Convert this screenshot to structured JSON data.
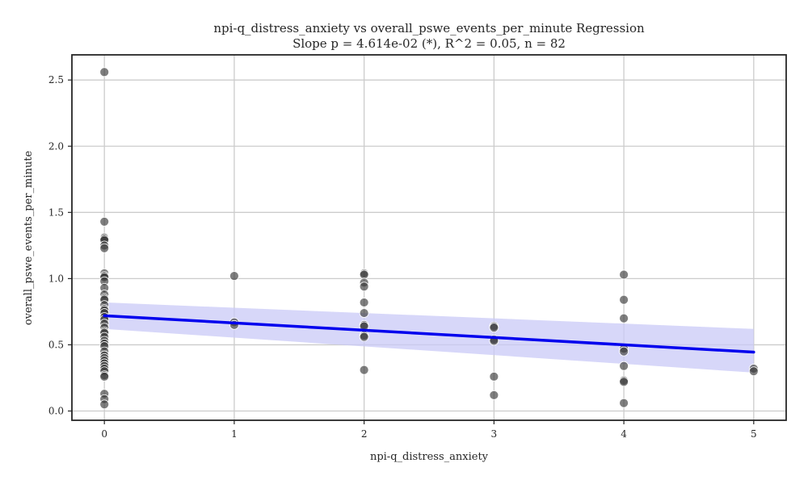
{
  "chart_data": {
    "type": "scatter",
    "title": "npi-q_distress_anxiety vs overall_pswe_events_per_minute Regression",
    "subtitle": "Slope p = 4.614e-02 (*), R^2 = 0.05, n = 82",
    "xlabel": "npi-q_distress_anxiety",
    "ylabel": "overall_pswe_events_per_minute",
    "xlim": [
      -0.25,
      5.25
    ],
    "ylim": [
      -0.07,
      2.69
    ],
    "xticks": [
      0,
      1,
      2,
      3,
      4,
      5
    ],
    "yticks": [
      0.0,
      0.5,
      1.0,
      1.5,
      2.0,
      2.5
    ],
    "xtick_labels": [
      "0",
      "1",
      "2",
      "3",
      "4",
      "5"
    ],
    "ytick_labels": [
      "0.0",
      "0.5",
      "1.0",
      "1.5",
      "2.0",
      "2.5"
    ],
    "grid": true,
    "points": [
      [
        0,
        2.56
      ],
      [
        0,
        1.43
      ],
      [
        0,
        1.31
      ],
      [
        0,
        1.3
      ],
      [
        0,
        1.29
      ],
      [
        0,
        1.25
      ],
      [
        0,
        1.23
      ],
      [
        0,
        1.04
      ],
      [
        0,
        1.02
      ],
      [
        0,
        1.01
      ],
      [
        0,
        0.98
      ],
      [
        0,
        0.93
      ],
      [
        0,
        0.88
      ],
      [
        0,
        0.85
      ],
      [
        0,
        0.84
      ],
      [
        0,
        0.8
      ],
      [
        0,
        0.77
      ],
      [
        0,
        0.76
      ],
      [
        0,
        0.74
      ],
      [
        0,
        0.71
      ],
      [
        0,
        0.69
      ],
      [
        0,
        0.66
      ],
      [
        0,
        0.63
      ],
      [
        0,
        0.6
      ],
      [
        0,
        0.59
      ],
      [
        0,
        0.56
      ],
      [
        0,
        0.53
      ],
      [
        0,
        0.51
      ],
      [
        0,
        0.49
      ],
      [
        0,
        0.45
      ],
      [
        0,
        0.42
      ],
      [
        0,
        0.4
      ],
      [
        0,
        0.38
      ],
      [
        0,
        0.36
      ],
      [
        0,
        0.34
      ],
      [
        0,
        0.32
      ],
      [
        0,
        0.3
      ],
      [
        0,
        0.27
      ],
      [
        0,
        0.26
      ],
      [
        0,
        0.13
      ],
      [
        0,
        0.09
      ],
      [
        0,
        0.05
      ],
      [
        1,
        1.02
      ],
      [
        1,
        0.67
      ],
      [
        1,
        0.65
      ],
      [
        2,
        1.04
      ],
      [
        2,
        1.03
      ],
      [
        2,
        0.97
      ],
      [
        2,
        0.94
      ],
      [
        2,
        0.82
      ],
      [
        2,
        0.74
      ],
      [
        2,
        0.65
      ],
      [
        2,
        0.64
      ],
      [
        2,
        0.57
      ],
      [
        2,
        0.56
      ],
      [
        2,
        0.31
      ],
      [
        3,
        0.64
      ],
      [
        3,
        0.63
      ],
      [
        3,
        0.54
      ],
      [
        3,
        0.53
      ],
      [
        3,
        0.26
      ],
      [
        3,
        0.12
      ],
      [
        4,
        1.03
      ],
      [
        4,
        0.84
      ],
      [
        4,
        0.7
      ],
      [
        4,
        0.47
      ],
      [
        4,
        0.45
      ],
      [
        4,
        0.34
      ],
      [
        4,
        0.23
      ],
      [
        4,
        0.22
      ],
      [
        4,
        0.06
      ],
      [
        5,
        0.32
      ],
      [
        5,
        0.3
      ]
    ],
    "regression": {
      "x": [
        0,
        5
      ],
      "y": [
        0.72,
        0.445
      ],
      "ci_upper": [
        0.82,
        0.62
      ],
      "ci_lower": [
        0.62,
        0.29
      ]
    },
    "colors": {
      "points": "#3a3a3a",
      "line": "#0000ee",
      "band": "#c9c9f7",
      "grid": "#cccccc",
      "frame": "#262626"
    }
  }
}
